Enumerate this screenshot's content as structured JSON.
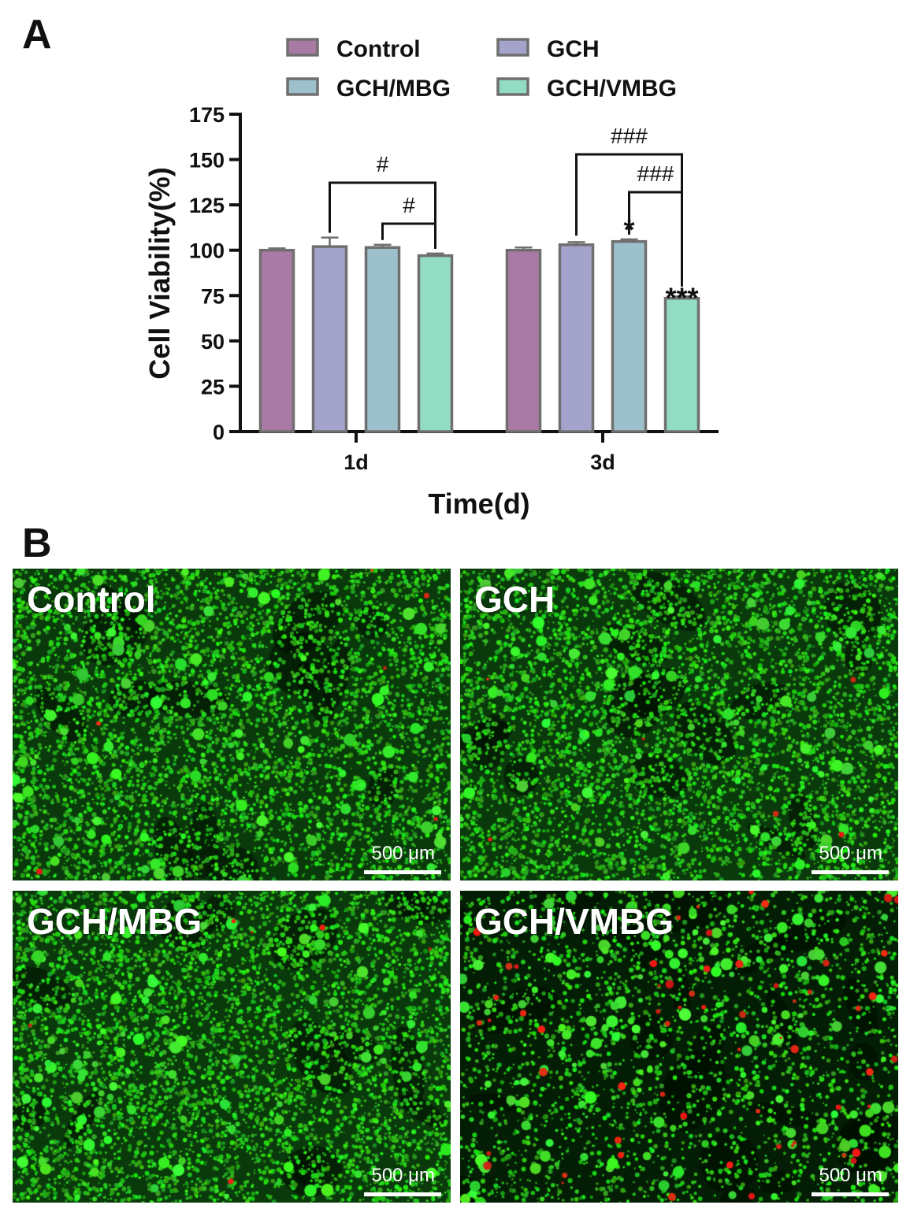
{
  "panels": {
    "a": {
      "letter": "A"
    },
    "b": {
      "letter": "B"
    }
  },
  "chart_data": {
    "type": "bar",
    "title": "",
    "xlabel": "Time(d)",
    "ylabel": "Cell Viability(%)",
    "ylim": [
      0,
      175
    ],
    "yticks": [
      0,
      25,
      50,
      75,
      100,
      125,
      150,
      175
    ],
    "yticks_labels": [
      "0",
      "25",
      "50",
      "75",
      "100",
      "125",
      "150",
      "175"
    ],
    "categories": [
      "1d",
      "3d"
    ],
    "legend": {
      "placement": "top",
      "columns": 2
    },
    "grid": false,
    "series": [
      {
        "name": "Control",
        "color": "#a87aa4",
        "values": [
          100,
          100
        ],
        "errors": [
          1.0,
          1.5
        ]
      },
      {
        "name": "GCH",
        "color": "#a3a3cc",
        "values": [
          102,
          103
        ],
        "errors": [
          5.0,
          1.5
        ]
      },
      {
        "name": "GCH/MBG",
        "color": "#9cc1cc",
        "values": [
          101.5,
          104.8
        ],
        "errors": [
          1.5,
          1.2
        ]
      },
      {
        "name": "GCH/VMBG",
        "color": "#93dcc4",
        "values": [
          97,
          73.5
        ],
        "errors": [
          1.2,
          1.0
        ]
      }
    ],
    "annotations": [
      {
        "type": "star",
        "text": "*",
        "category": "3d",
        "series": "GCH/MBG"
      },
      {
        "type": "star",
        "text": "***",
        "category": "3d",
        "series": "GCH/VMBG"
      },
      {
        "type": "bracket",
        "text": "#",
        "category": "1d",
        "from": "GCH",
        "to": "GCH/VMBG"
      },
      {
        "type": "bracket",
        "text": "#",
        "category": "1d",
        "from": "GCH/MBG",
        "to": "GCH/VMBG"
      },
      {
        "type": "bracket",
        "text": "###",
        "category": "3d",
        "from": "GCH",
        "to": "GCH/VMBG"
      },
      {
        "type": "bracket",
        "text": "###",
        "category": "3d",
        "from": "GCH/MBG",
        "to": "GCH/VMBG"
      }
    ]
  },
  "micrographs": [
    {
      "label": "Control",
      "scale_label": "500 μm",
      "red_density": "low"
    },
    {
      "label": "GCH",
      "scale_label": "500 μm",
      "red_density": "low"
    },
    {
      "label": "GCH/MBG",
      "scale_label": "500 μm",
      "red_density": "low"
    },
    {
      "label": "GCH/VMBG",
      "scale_label": "500 μm",
      "red_density": "high"
    }
  ]
}
